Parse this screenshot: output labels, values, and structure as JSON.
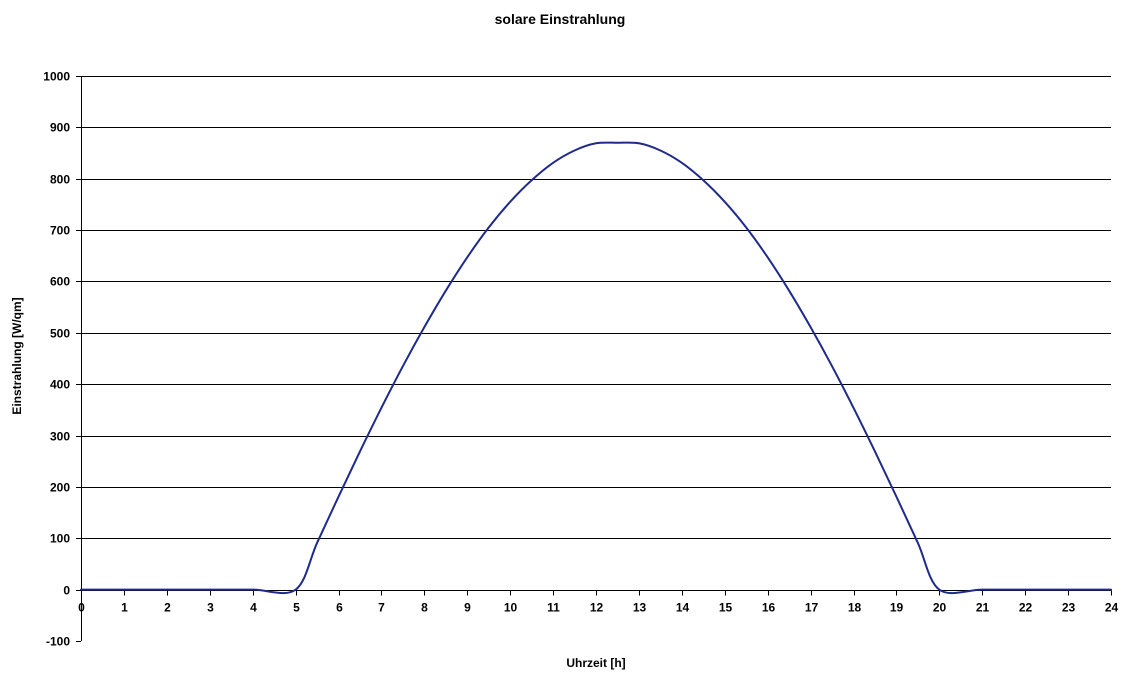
{
  "chart_data": {
    "type": "line",
    "title": "solare Einstrahlung",
    "xlabel": "Uhrzeit [h]",
    "ylabel": "Einstrahlung [W/qm]",
    "xlim": [
      0,
      24
    ],
    "ylim": [
      -100,
      1000
    ],
    "x_ticks": [
      0,
      1,
      2,
      3,
      4,
      5,
      6,
      7,
      8,
      9,
      10,
      11,
      12,
      13,
      14,
      15,
      16,
      17,
      18,
      19,
      20,
      21,
      22,
      23,
      24
    ],
    "y_ticks": [
      -100,
      0,
      100,
      200,
      300,
      400,
      500,
      600,
      700,
      800,
      900,
      1000
    ],
    "x_tick_labels": [
      "0",
      "1",
      "2",
      "3",
      "4",
      "5",
      "6",
      "7",
      "8",
      "9",
      "10",
      "11",
      "12",
      "13",
      "14",
      "15",
      "16",
      "17",
      "18",
      "19",
      "20",
      "21",
      "22",
      "23",
      "24"
    ],
    "y_tick_labels": [
      "-100",
      "0",
      "100",
      "200",
      "300",
      "400",
      "500",
      "600",
      "700",
      "800",
      "900",
      "1000"
    ],
    "grid": "horizontal",
    "legend": "none",
    "series": [
      {
        "color": "#1f2a8a",
        "x": [
          0,
          1,
          2,
          3,
          4,
          5,
          5.5,
          6,
          6.5,
          7,
          7.5,
          8,
          8.5,
          9,
          9.5,
          10,
          10.5,
          11,
          11.5,
          12,
          12.5,
          13,
          13.5,
          14,
          14.5,
          15,
          15.5,
          16,
          16.5,
          17,
          17.5,
          18,
          18.5,
          19,
          19.5,
          20,
          21,
          22,
          23,
          24
        ],
        "y": [
          0,
          0,
          0,
          0,
          0,
          0,
          91,
          181,
          269,
          354,
          435,
          511,
          582,
          647,
          705,
          755,
          797,
          831,
          855,
          869,
          870,
          869,
          855,
          831,
          797,
          755,
          705,
          647,
          582,
          511,
          435,
          354,
          269,
          181,
          91,
          0,
          0,
          0,
          0,
          0
        ]
      }
    ]
  }
}
